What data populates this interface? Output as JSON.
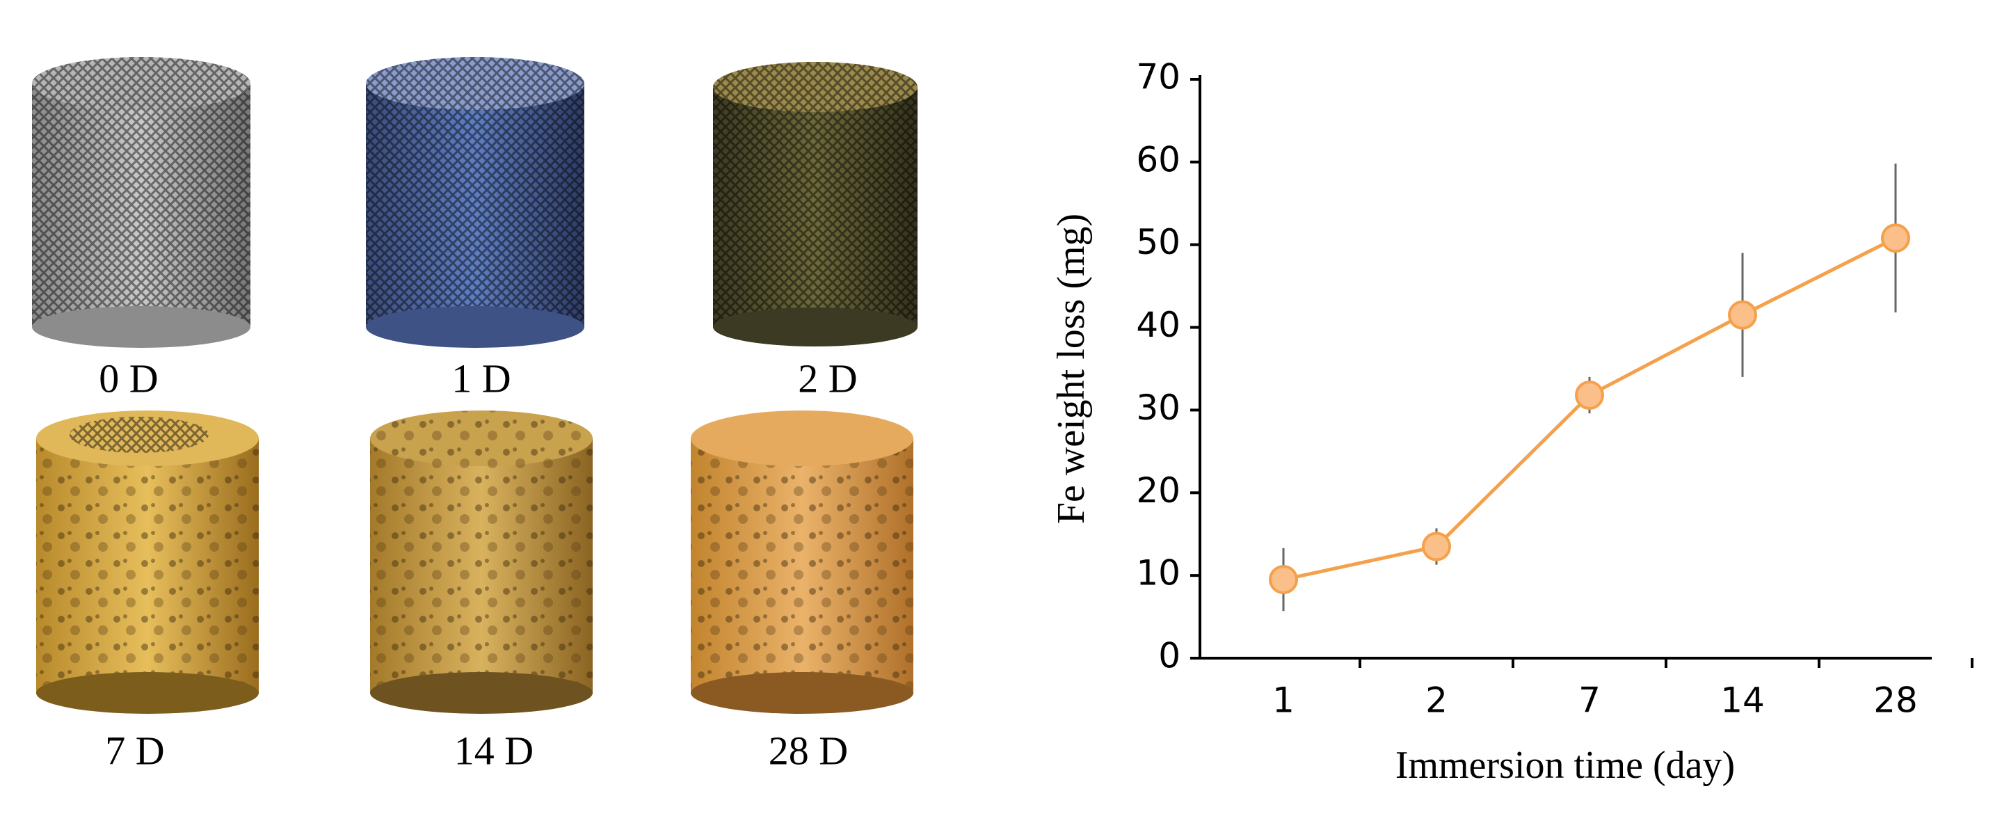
{
  "photos": {
    "labels": [
      "0 D",
      "1 D",
      "2 D",
      "7 D",
      "14 D",
      "28 D"
    ]
  },
  "chart_data": {
    "type": "line",
    "x_label": "Immersion time (day)",
    "y_label": "Fe weight loss (mg)",
    "categories": [
      "1",
      "2",
      "7",
      "14",
      "28"
    ],
    "series": [
      {
        "color": "#f5a04a",
        "marker_color": "#fbc08a",
        "error_color": "#666666",
        "values": [
          9.5,
          13.5,
          31.8,
          41.5,
          50.8
        ],
        "error": [
          3.8,
          2.2,
          2.2,
          7.5,
          9
        ]
      }
    ],
    "ylim": [
      0,
      70
    ],
    "yticks": [
      0,
      10,
      20,
      30,
      40,
      50,
      60,
      70
    ],
    "grid": false
  }
}
